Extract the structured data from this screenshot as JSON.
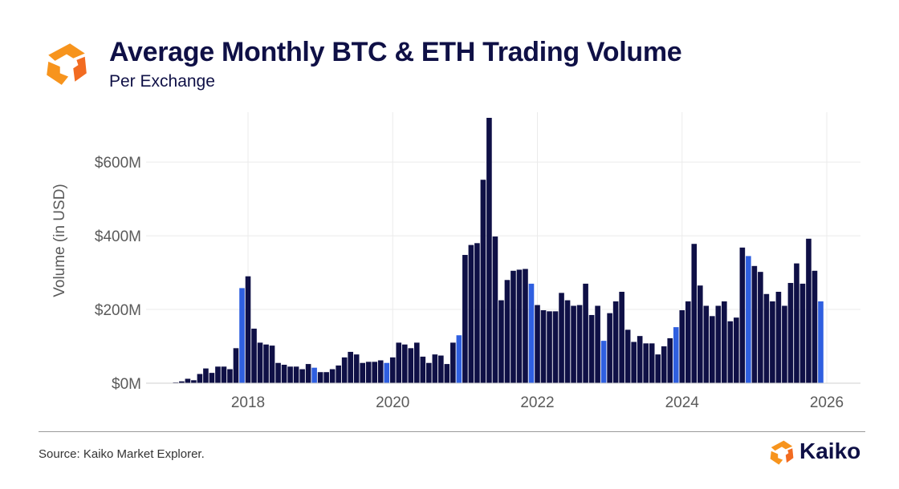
{
  "header": {
    "title": "Average Monthly BTC & ETH Trading Volume",
    "subtitle": "Per Exchange"
  },
  "footer": {
    "source": "Source: Kaiko Market Explorer.",
    "brand": "Kaiko"
  },
  "colors": {
    "navy": "#0f1046",
    "blue": "#2f5fe0",
    "orange": "#f7941d",
    "orange_dark": "#f26b21",
    "grid": "#ebebeb"
  },
  "chart_data": {
    "type": "bar",
    "title": "Average Monthly BTC & ETH Trading Volume",
    "subtitle": "Per Exchange",
    "xlabel": "",
    "ylabel": "Volume (in USD)",
    "ylim": [
      0,
      720
    ],
    "y_ticks": [
      0,
      200,
      400,
      600
    ],
    "y_tick_labels": [
      "$0M",
      "$200M",
      "$400M",
      "$600M"
    ],
    "x_ticks": [
      2018,
      2020,
      2022,
      2024,
      2026
    ],
    "x_tick_labels": [
      "2018",
      "2020",
      "2022",
      "2024",
      "2026"
    ],
    "start": "2017-01",
    "units": "millions USD",
    "highlight": "December bars shown in blue",
    "values": [
      2,
      5,
      12,
      8,
      25,
      40,
      28,
      45,
      45,
      38,
      95,
      258,
      290,
      148,
      110,
      105,
      102,
      55,
      50,
      45,
      45,
      38,
      52,
      42,
      30,
      30,
      38,
      48,
      70,
      85,
      78,
      55,
      58,
      58,
      62,
      55,
      70,
      110,
      105,
      95,
      110,
      72,
      55,
      78,
      75,
      52,
      110,
      130,
      348,
      375,
      380,
      552,
      720,
      398,
      225,
      280,
      305,
      308,
      310,
      270,
      212,
      198,
      195,
      195,
      245,
      225,
      210,
      212,
      270,
      185,
      210,
      115,
      190,
      222,
      248,
      145,
      112,
      128,
      108,
      108,
      78,
      100,
      122,
      152,
      198,
      222,
      378,
      265,
      210,
      182,
      210,
      222,
      168,
      178,
      368,
      345,
      318,
      302,
      242,
      222,
      248,
      210,
      272,
      325,
      270,
      392,
      305,
      222
    ]
  }
}
